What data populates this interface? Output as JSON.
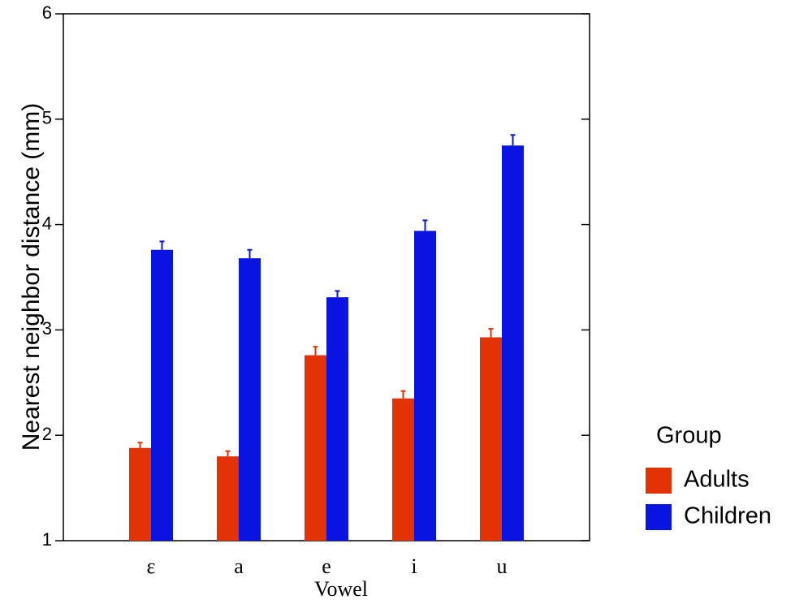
{
  "chart_data": {
    "type": "bar",
    "x_label": "Vowel",
    "y_label": "Nearest neighbor distance (mm)",
    "categories": [
      "ε",
      "a",
      "e",
      "i",
      "u"
    ],
    "series": [
      {
        "name": "Adults",
        "color": "#e33205",
        "values": [
          1.88,
          1.8,
          2.76,
          2.35,
          2.93
        ],
        "errors": [
          0.05,
          0.05,
          0.08,
          0.07,
          0.08
        ]
      },
      {
        "name": "Children",
        "color": "#0a14e0",
        "values": [
          3.76,
          3.68,
          3.31,
          3.94,
          4.75
        ],
        "errors": [
          0.08,
          0.08,
          0.06,
          0.1,
          0.1
        ]
      }
    ],
    "ylim": [
      1,
      6
    ],
    "yticks": [
      1,
      2,
      3,
      4,
      5,
      6
    ],
    "legend_title": "Group",
    "legend": "right",
    "grid": false
  }
}
